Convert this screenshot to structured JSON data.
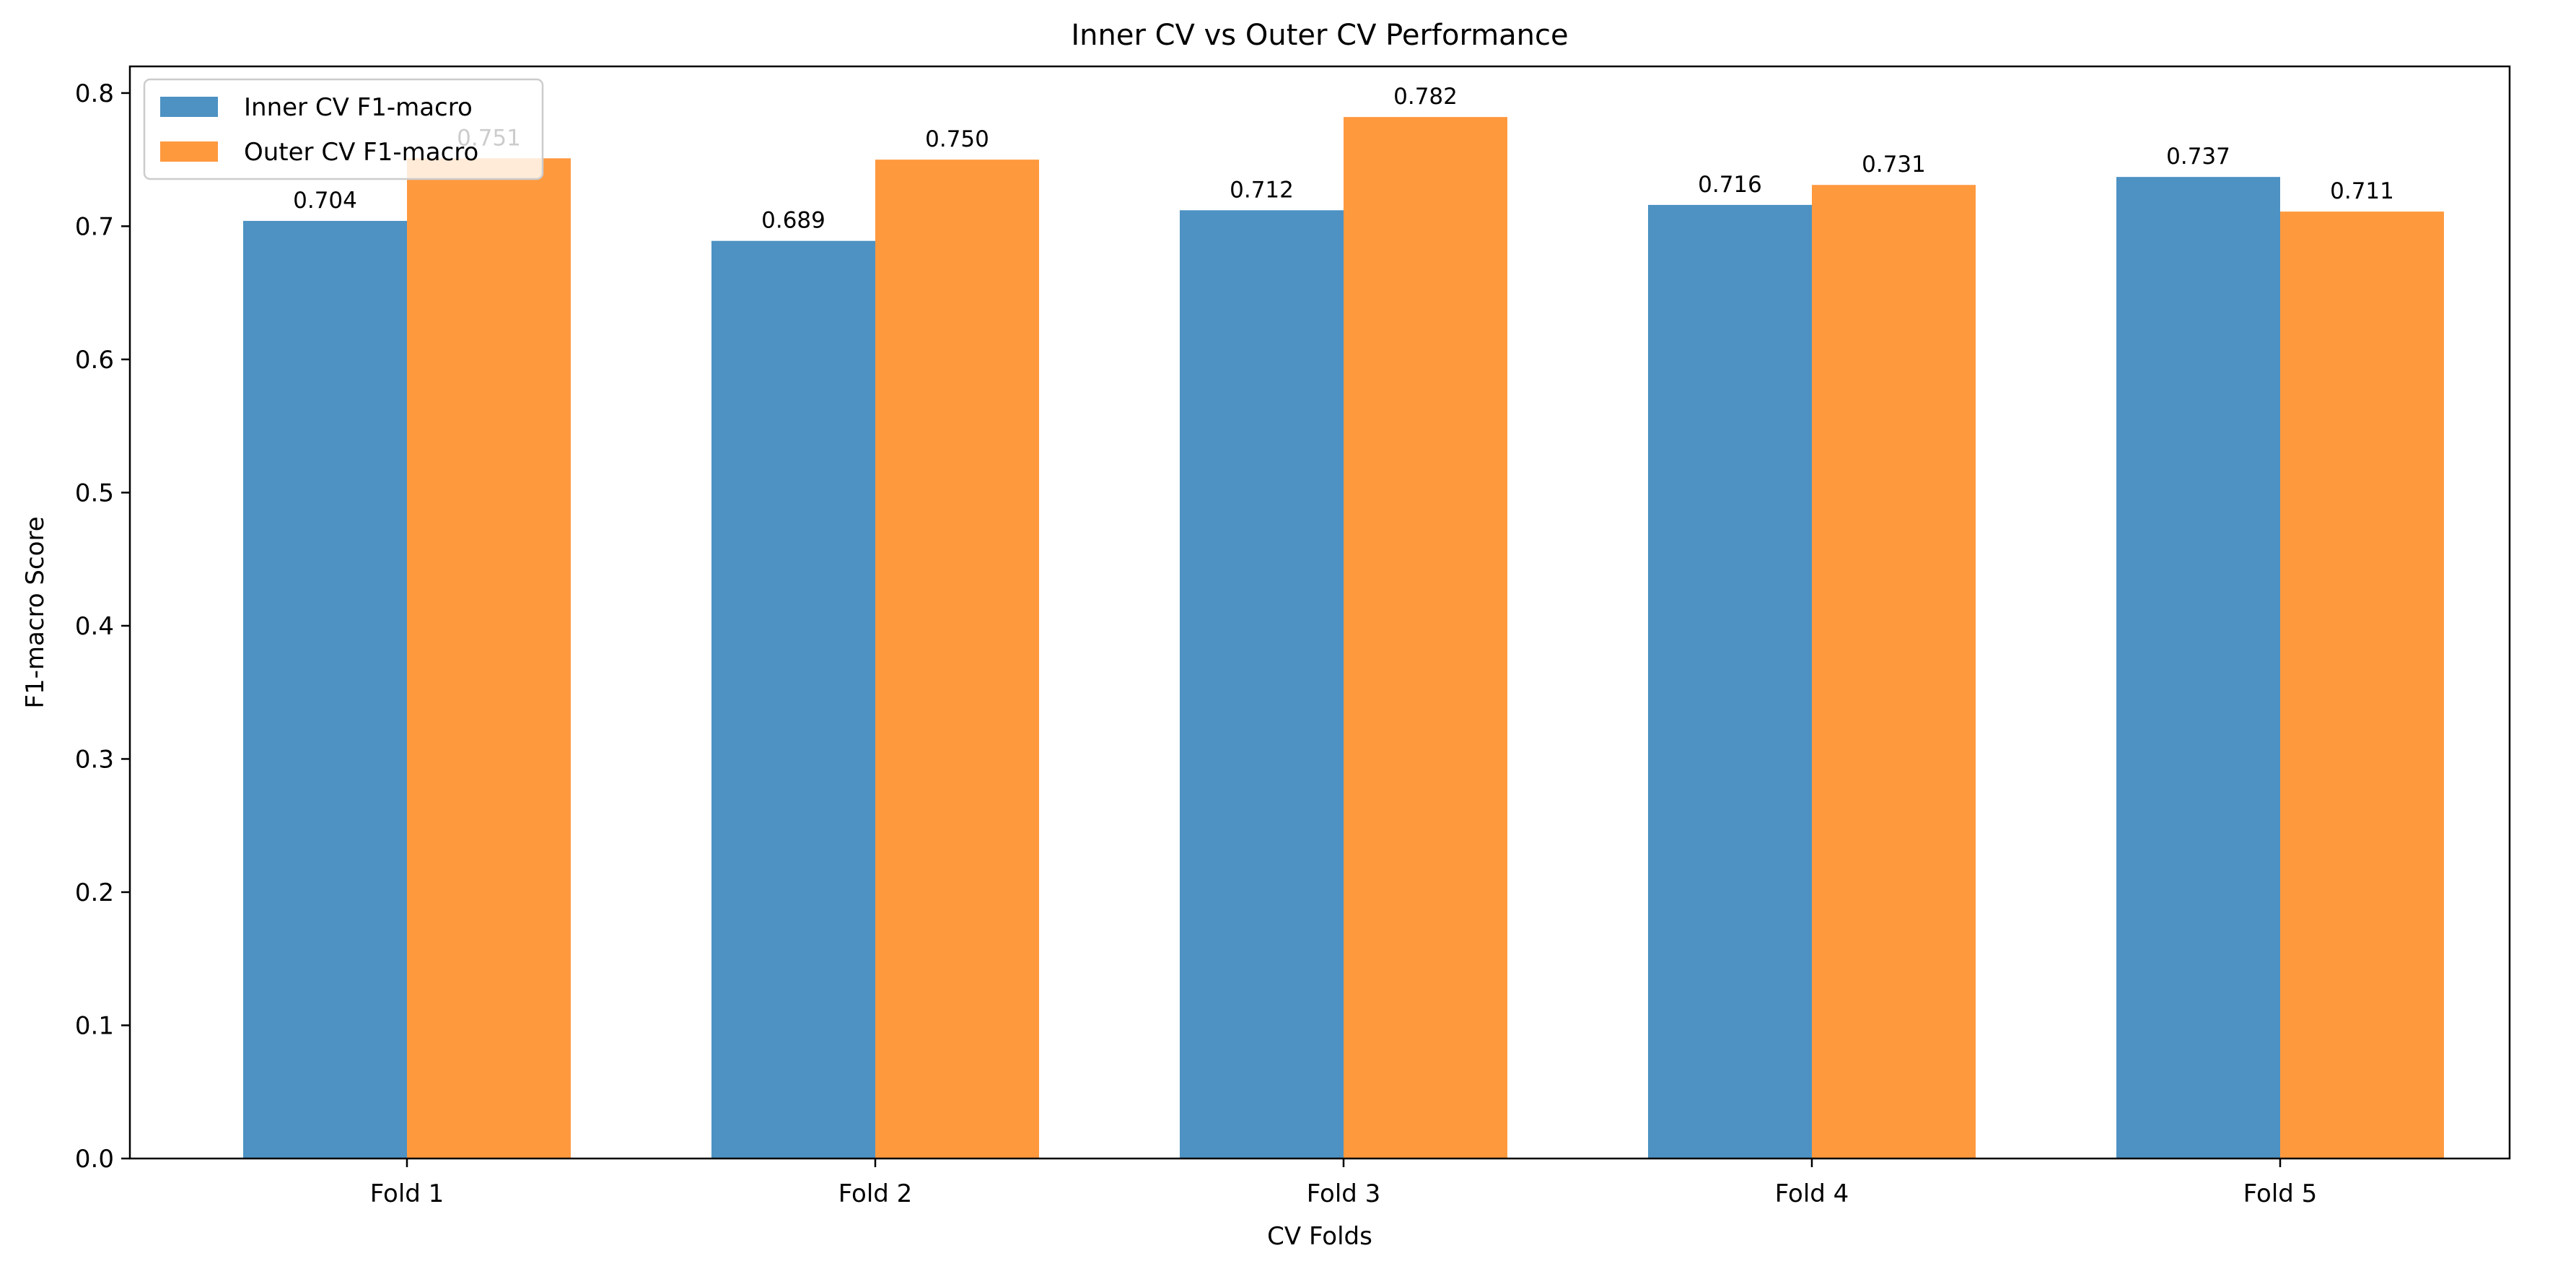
{
  "chart_data": {
    "type": "bar",
    "title": "Inner CV vs Outer CV Performance",
    "xlabel": "CV Folds",
    "ylabel": "F1-macro Score",
    "categories": [
      "Fold 1",
      "Fold 2",
      "Fold 3",
      "Fold 4",
      "Fold 5"
    ],
    "series": [
      {
        "name": "Inner CV F1-macro",
        "color": "#4d92c3",
        "values": [
          0.704,
          0.689,
          0.712,
          0.716,
          0.737
        ],
        "labels": [
          "0.704",
          "0.689",
          "0.712",
          "0.716",
          "0.737"
        ]
      },
      {
        "name": "Outer CV F1-macro",
        "color": "#ff993e",
        "values": [
          0.751,
          0.75,
          0.782,
          0.731,
          0.711
        ],
        "labels": [
          "0.751",
          "0.750",
          "0.782",
          "0.731",
          "0.711"
        ]
      }
    ],
    "ylim": [
      0,
      0.82
    ],
    "yticks": [
      "0.0",
      "0.1",
      "0.2",
      "0.3",
      "0.4",
      "0.5",
      "0.6",
      "0.7",
      "0.8"
    ],
    "grid": false,
    "legend_position": "top-left"
  }
}
